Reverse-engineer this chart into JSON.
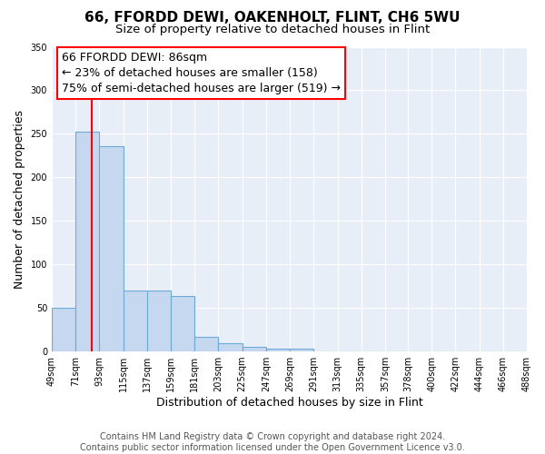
{
  "title": "66, FFORDD DEWI, OAKENHOLT, FLINT, CH6 5WU",
  "subtitle": "Size of property relative to detached houses in Flint",
  "xlabel": "Distribution of detached houses by size in Flint",
  "ylabel": "Number of detached properties",
  "footer_lines": [
    "Contains HM Land Registry data © Crown copyright and database right 2024.",
    "Contains public sector information licensed under the Open Government Licence v3.0."
  ],
  "bin_edges": [
    49,
    71,
    93,
    115,
    137,
    159,
    181,
    203,
    225,
    247,
    269,
    291,
    313,
    335,
    357,
    378,
    400,
    422,
    444,
    466,
    488
  ],
  "bin_labels": [
    "49sqm",
    "71sqm",
    "93sqm",
    "115sqm",
    "137sqm",
    "159sqm",
    "181sqm",
    "203sqm",
    "225sqm",
    "247sqm",
    "269sqm",
    "291sqm",
    "313sqm",
    "335sqm",
    "357sqm",
    "378sqm",
    "400sqm",
    "422sqm",
    "444sqm",
    "466sqm",
    "488sqm"
  ],
  "counts": [
    50,
    252,
    236,
    70,
    70,
    64,
    17,
    9,
    5,
    3,
    3,
    0,
    0,
    0,
    0,
    0,
    0,
    0,
    0,
    0
  ],
  "bar_color": "#c5d8f0",
  "bar_edge_color": "#6aaad4",
  "property_line_x": 86,
  "property_line_color": "red",
  "annotation_box_text": "66 FFORDD DEWI: 86sqm\n← 23% of detached houses are smaller (158)\n75% of semi-detached houses are larger (519) →",
  "ylim": [
    0,
    350
  ],
  "yticks": [
    0,
    50,
    100,
    150,
    200,
    250,
    300,
    350
  ],
  "fig_bg_color": "#ffffff",
  "plot_bg_color": "#e8eef8",
  "grid_color": "#ffffff",
  "title_fontsize": 11,
  "subtitle_fontsize": 9.5,
  "axis_label_fontsize": 9,
  "tick_fontsize": 7,
  "annotation_fontsize": 9,
  "footer_fontsize": 7
}
